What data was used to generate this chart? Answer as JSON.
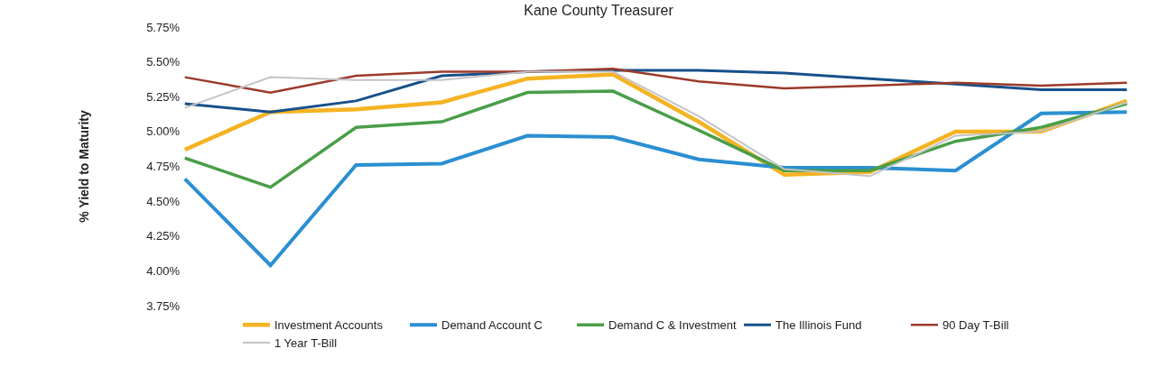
{
  "chart_data": {
    "type": "line",
    "title": "Kane County Treasurer",
    "ylabel": "% Yield to Maturity",
    "categories": [
      null,
      null,
      null,
      null,
      null,
      null,
      null,
      null,
      null,
      null,
      null,
      null
    ],
    "series": [
      {
        "name": "Investment Accounts",
        "color": "#f5b323",
        "values": [
          4.87,
          5.14,
          5.16,
          5.21,
          5.38,
          5.41,
          5.07,
          4.69,
          4.71,
          5.0,
          5.0,
          5.22
        ]
      },
      {
        "name": "Demand Account C",
        "color": "#2b8fd1",
        "values": [
          4.66,
          4.04,
          4.76,
          4.77,
          4.97,
          4.96,
          4.8,
          4.74,
          4.74,
          4.72,
          5.13,
          5.14
        ]
      },
      {
        "name": "Demand C & Investment",
        "color": "#4a9e48",
        "values": [
          4.81,
          4.6,
          5.03,
          5.07,
          5.28,
          5.29,
          5.01,
          4.72,
          4.72,
          4.93,
          5.03,
          5.2
        ]
      },
      {
        "name": "The Illinois Fund",
        "color": "#16508a",
        "values": [
          5.2,
          5.14,
          5.22,
          5.4,
          5.43,
          5.44,
          5.44,
          5.42,
          5.38,
          5.34,
          5.3,
          5.3
        ]
      },
      {
        "name": "90 Day T-Bill",
        "color": "#9b3a2a",
        "values": [
          5.39,
          5.28,
          5.4,
          5.43,
          5.43,
          5.45,
          5.36,
          5.31,
          5.33,
          5.35,
          5.33,
          5.35
        ]
      },
      {
        "name": "1 Year T-Bill",
        "color": "#c3c3c8",
        "values": [
          5.17,
          5.39,
          5.37,
          5.37,
          5.43,
          5.43,
          5.11,
          4.73,
          4.68,
          4.97,
          5.0,
          5.21
        ]
      }
    ],
    "ylim": [
      3.75,
      5.75
    ],
    "yticks": [
      {
        "value": 3.75,
        "label": "3.75%"
      },
      {
        "value": 4.0,
        "label": "4.00%"
      },
      {
        "value": 4.25,
        "label": "4.25%"
      },
      {
        "value": 4.5,
        "label": "4.50%"
      },
      {
        "value": 4.75,
        "label": "4.75%"
      },
      {
        "value": 5.0,
        "label": "5.00%"
      },
      {
        "value": 5.25,
        "label": "5.25%"
      },
      {
        "value": 5.5,
        "label": "5.50%"
      },
      {
        "value": 5.75,
        "label": "5.75%"
      }
    ],
    "tick_labels": "y",
    "legend": "bottom",
    "marker": "none",
    "line_style": "solid"
  }
}
